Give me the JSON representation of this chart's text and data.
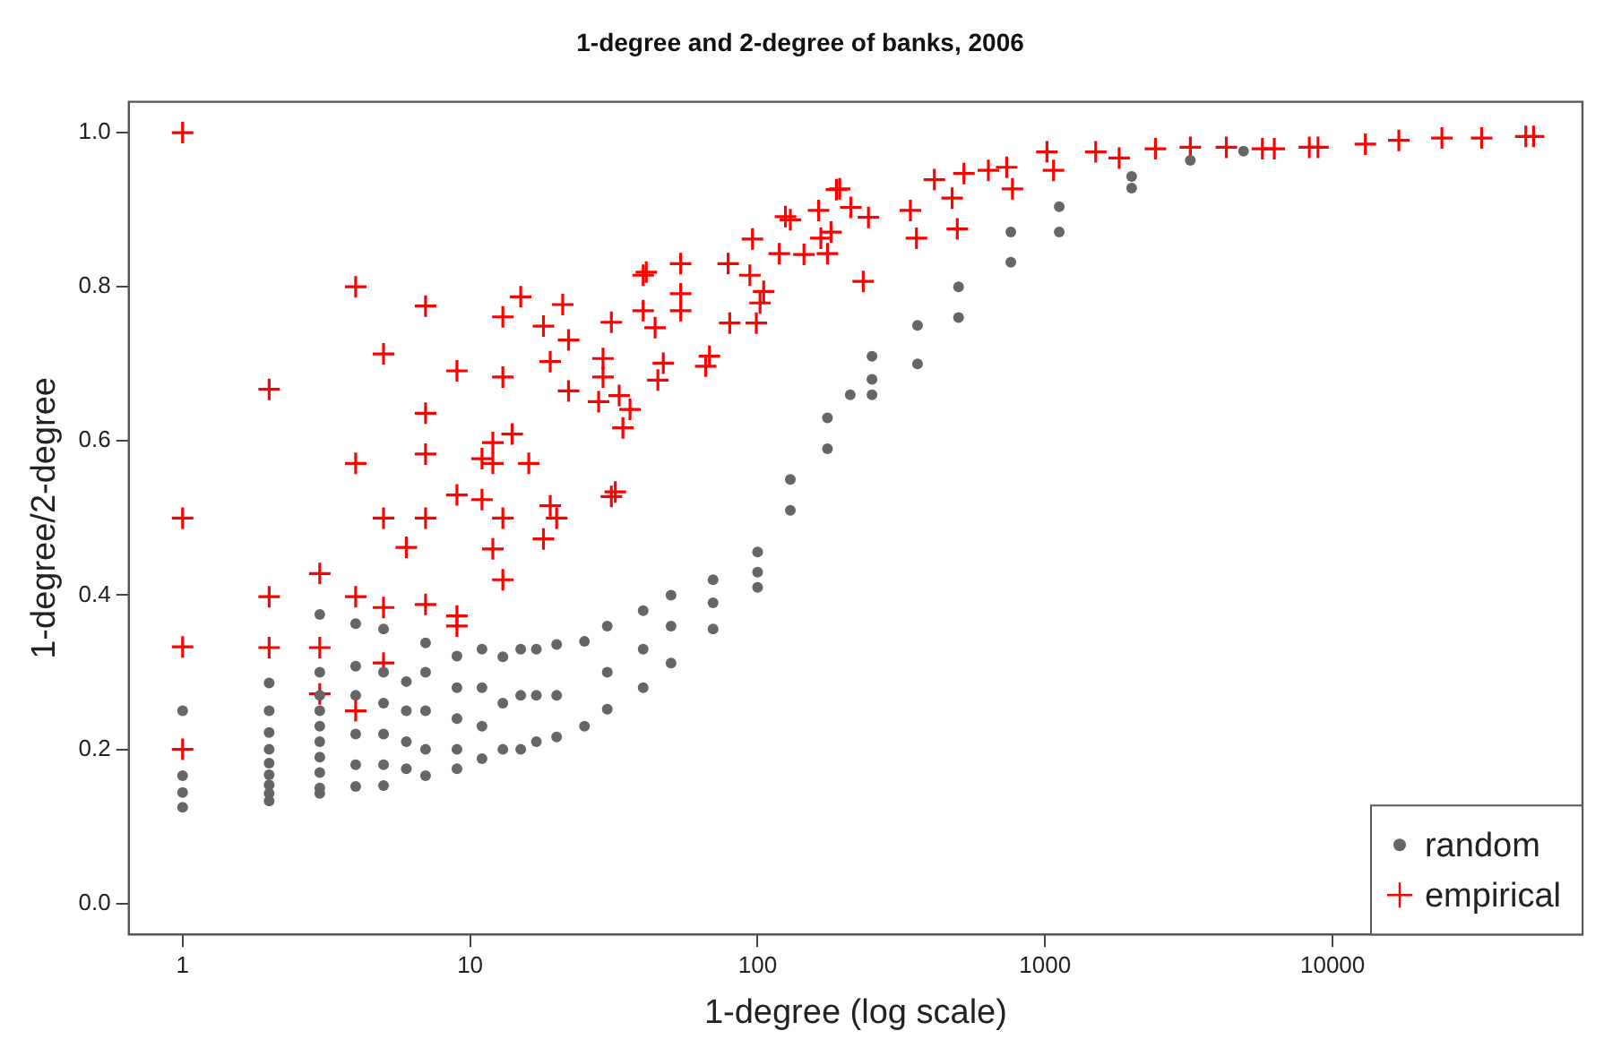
{
  "chart_data": {
    "type": "scatter",
    "title": "1-degree and 2-degree of banks, 2006",
    "xlabel": "1-degree (log scale)",
    "ylabel": "1-degree/2-degree",
    "log": "x",
    "grid": false,
    "legend": "bottom right",
    "xlim": [
      0.65,
      74000
    ],
    "xticks": [
      1,
      10,
      100,
      1000,
      10000
    ],
    "ylim": [
      -0.04,
      1.04
    ],
    "yticks": [
      {
        "value": 0,
        "label": "0.0"
      },
      {
        "value": 0.2,
        "label": "0.2"
      },
      {
        "value": 0.4,
        "label": "0.4"
      },
      {
        "value": 0.6,
        "label": "0.6"
      },
      {
        "value": 0.8,
        "label": "0.8"
      },
      {
        "value": 1,
        "label": "1.0"
      }
    ],
    "series": [
      {
        "name": "random",
        "color": "#666666",
        "marker": "circle",
        "x": [
          1,
          1,
          1,
          1,
          2,
          2,
          2,
          2,
          2,
          2,
          2,
          2,
          2,
          3,
          3,
          3,
          3,
          3,
          3,
          3,
          3,
          3,
          3,
          4,
          4,
          4,
          4,
          4,
          4,
          5,
          5,
          5,
          5,
          5,
          5,
          6,
          6,
          6,
          6,
          7,
          7,
          7,
          7,
          7,
          9,
          9,
          9,
          9,
          9,
          11,
          11,
          11,
          11,
          13,
          13,
          13,
          15,
          15,
          15,
          17,
          17,
          17,
          20,
          20,
          20,
          25,
          25,
          30,
          30,
          30,
          40,
          40,
          40,
          50,
          50,
          50,
          70,
          70,
          70,
          100,
          100,
          100,
          130,
          130,
          175,
          175,
          210,
          250,
          250,
          250,
          360,
          360,
          500,
          500,
          760,
          760,
          1120,
          1120,
          2000,
          2000,
          3200,
          4900
        ],
        "values": [
          0.25,
          0.166,
          0.144,
          0.125,
          0.286,
          0.25,
          0.222,
          0.2,
          0.182,
          0.167,
          0.154,
          0.143,
          0.133,
          0.375,
          0.3,
          0.27,
          0.25,
          0.23,
          0.21,
          0.19,
          0.17,
          0.15,
          0.143,
          0.363,
          0.308,
          0.27,
          0.22,
          0.18,
          0.152,
          0.356,
          0.3,
          0.26,
          0.22,
          0.18,
          0.153,
          0.288,
          0.25,
          0.21,
          0.175,
          0.338,
          0.3,
          0.25,
          0.2,
          0.166,
          0.321,
          0.28,
          0.24,
          0.2,
          0.175,
          0.33,
          0.28,
          0.23,
          0.188,
          0.32,
          0.26,
          0.2,
          0.33,
          0.27,
          0.2,
          0.33,
          0.27,
          0.21,
          0.336,
          0.27,
          0.216,
          0.34,
          0.23,
          0.36,
          0.3,
          0.252,
          0.38,
          0.33,
          0.28,
          0.4,
          0.36,
          0.312,
          0.42,
          0.39,
          0.356,
          0.456,
          0.43,
          0.41,
          0.55,
          0.51,
          0.63,
          0.59,
          0.66,
          0.71,
          0.68,
          0.66,
          0.75,
          0.7,
          0.8,
          0.76,
          0.871,
          0.832,
          0.904,
          0.871,
          0.943,
          0.928,
          0.964,
          0.976
        ]
      },
      {
        "name": "empirical",
        "color": "#ff0000",
        "marker": "cross",
        "x": [
          1,
          1,
          1,
          1,
          2,
          2,
          2,
          3,
          3,
          3,
          4,
          4,
          4,
          4,
          5,
          5,
          5,
          5,
          6,
          7,
          7,
          7,
          7,
          7,
          9,
          9,
          9,
          9,
          11,
          11,
          12,
          12,
          12,
          13,
          13,
          13,
          13,
          14,
          15,
          16,
          18,
          18,
          19,
          19,
          20,
          21,
          22,
          22,
          28,
          29,
          29,
          31,
          31,
          32,
          33,
          34,
          36,
          40,
          41,
          40,
          44,
          45,
          47,
          54,
          54,
          54,
          66,
          68,
          79,
          80,
          94,
          96,
          99,
          102,
          105,
          119,
          125,
          130,
          145,
          163,
          166,
          175,
          180,
          188,
          193,
          211,
          233,
          243,
          340,
          357,
          412,
          475,
          495,
          522,
          635,
          735,
          770,
          1015,
          1070,
          1500,
          1810,
          2420,
          3200,
          4270,
          5700,
          6270,
          8300,
          8900,
          13000,
          17000,
          24000,
          33000,
          47000,
          50000
        ],
        "values": [
          1.0,
          0.5,
          0.333,
          0.2,
          0.667,
          0.398,
          0.332,
          0.428,
          0.332,
          0.272,
          0.8,
          0.571,
          0.398,
          0.25,
          0.713,
          0.5,
          0.384,
          0.312,
          0.462,
          0.775,
          0.636,
          0.583,
          0.5,
          0.388,
          0.691,
          0.53,
          0.373,
          0.36,
          0.524,
          0.577,
          0.598,
          0.571,
          0.46,
          0.683,
          0.761,
          0.5,
          0.42,
          0.609,
          0.787,
          0.571,
          0.749,
          0.473,
          0.703,
          0.516,
          0.5,
          0.777,
          0.731,
          0.665,
          0.651,
          0.707,
          0.683,
          0.754,
          0.528,
          0.534,
          0.659,
          0.617,
          0.641,
          0.815,
          0.819,
          0.769,
          0.747,
          0.679,
          0.701,
          0.83,
          0.791,
          0.769,
          0.697,
          0.71,
          0.83,
          0.753,
          0.815,
          0.862,
          0.753,
          0.779,
          0.794,
          0.843,
          0.891,
          0.887,
          0.842,
          0.899,
          0.863,
          0.843,
          0.871,
          0.926,
          0.927,
          0.903,
          0.807,
          0.89,
          0.899,
          0.863,
          0.939,
          0.915,
          0.875,
          0.947,
          0.951,
          0.955,
          0.927,
          0.975,
          0.951,
          0.975,
          0.967,
          0.979,
          0.981,
          0.981,
          0.979,
          0.979,
          0.981,
          0.981,
          0.985,
          0.99,
          0.993,
          0.993,
          0.995,
          0.995
        ]
      }
    ]
  }
}
